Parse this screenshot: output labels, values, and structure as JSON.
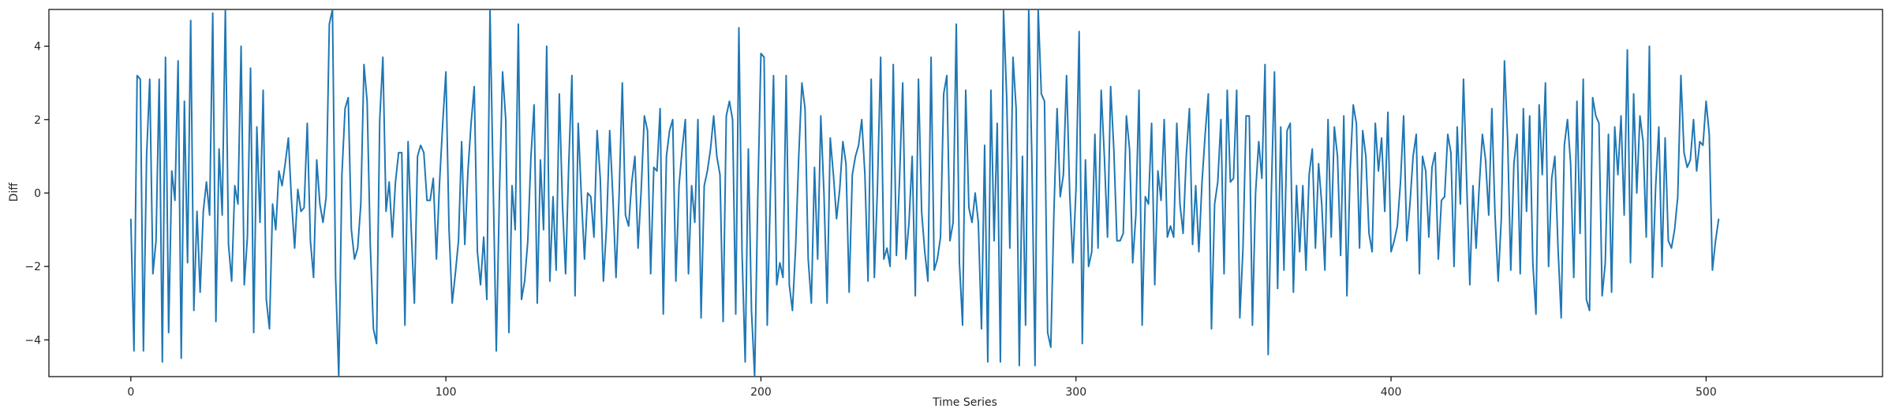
{
  "chart_data": {
    "type": "line",
    "title": "",
    "xlabel": "Time Series",
    "ylabel": "Diff",
    "xlim": [
      -26,
      556
    ],
    "ylim": [
      -5,
      5
    ],
    "xticks": [
      0,
      100,
      200,
      300,
      400,
      500
    ],
    "yticks": [
      -4,
      -2,
      0,
      2,
      4
    ],
    "xtick_labels": [
      "0",
      "100",
      "200",
      "300",
      "400",
      "500"
    ],
    "ytick_labels": [
      "−4",
      "−2",
      "0",
      "2",
      "4"
    ],
    "grid": false,
    "line_color": "#1f77b4",
    "series": [
      {
        "x_start": 0,
        "x_step": 1,
        "values": [
          -0.7,
          -4.3,
          3.2,
          3.1,
          -4.3,
          1.0,
          3.1,
          -2.2,
          -1.3,
          3.1,
          -4.6,
          3.7,
          -3.8,
          0.6,
          -0.2,
          3.6,
          -4.5,
          2.5,
          -1.9,
          4.7,
          -3.2,
          -0.5,
          -2.7,
          -0.5,
          0.3,
          -0.6,
          4.9,
          -3.5,
          1.2,
          -0.6,
          5.0,
          -1.4,
          -2.4,
          0.2,
          -0.3,
          4.0,
          -2.5,
          -1.2,
          3.4,
          -3.8,
          1.8,
          -0.8,
          2.8,
          -2.9,
          -3.7,
          -0.3,
          -1.0,
          0.6,
          0.2,
          0.8,
          1.5,
          -0.2,
          -1.5,
          0.1,
          -0.5,
          -0.4,
          1.9,
          -1.3,
          -2.3,
          0.9,
          -0.3,
          -0.8,
          -0.1,
          4.6,
          5.0,
          -2.3,
          -5.0,
          0.5,
          2.3,
          2.6,
          -1.0,
          -1.8,
          -1.5,
          -0.3,
          3.5,
          2.5,
          -1.4,
          -3.7,
          -4.1,
          2.0,
          3.7,
          -0.5,
          0.3,
          -1.2,
          0.3,
          1.1,
          1.1,
          -3.6,
          1.4,
          -1.0,
          -3.0,
          1.0,
          1.3,
          1.1,
          -0.2,
          -0.2,
          0.4,
          -1.8,
          0.3,
          1.9,
          3.3,
          -1.0,
          -3.0,
          -2.2,
          -1.3,
          1.4,
          -1.4,
          0.6,
          1.9,
          2.9,
          -1.6,
          -2.5,
          -1.2,
          -2.9,
          5.0,
          0.3,
          -4.3,
          0.0,
          3.3,
          2.0,
          -3.8,
          0.2,
          -1.0,
          4.6,
          -2.9,
          -2.4,
          -1.3,
          1.0,
          2.4,
          -3.0,
          0.9,
          -1.0,
          4.0,
          -2.4,
          -0.1,
          -2.1,
          2.7,
          -0.3,
          -2.2,
          0.8,
          3.2,
          -2.8,
          1.9,
          -0.1,
          -1.8,
          0.0,
          -0.1,
          -1.2,
          1.7,
          0.4,
          -2.4,
          -0.9,
          1.7,
          -0.1,
          -2.3,
          0.0,
          3.0,
          -0.6,
          -0.9,
          0.3,
          1.0,
          -1.5,
          0.1,
          2.1,
          1.7,
          -2.2,
          0.7,
          0.6,
          2.3,
          -3.3,
          1.0,
          1.7,
          2.0,
          -2.4,
          0.2,
          1.2,
          2.0,
          -2.2,
          0.2,
          -0.8,
          2.0,
          -3.4,
          0.2,
          0.6,
          1.2,
          2.1,
          1.0,
          0.5,
          -3.5,
          2.1,
          2.5,
          2.0,
          -3.3,
          4.5,
          -1.6,
          -4.6,
          1.2,
          -3.2,
          -5.0,
          -0.1,
          3.8,
          3.7,
          -3.6,
          0.0,
          3.2,
          -2.5,
          -1.9,
          -2.3,
          3.2,
          -2.5,
          -3.2,
          -1.5,
          1.0,
          3.0,
          2.3,
          -1.8,
          -3.0,
          0.7,
          -1.8,
          2.1,
          0.0,
          -3.0,
          1.5,
          0.5,
          -0.7,
          0.1,
          1.4,
          0.8,
          -2.7,
          0.5,
          1.0,
          1.3,
          2.0,
          0.5,
          -2.4,
          3.1,
          -2.3,
          0.2,
          3.7,
          -1.8,
          -1.5,
          -2.0,
          3.5,
          -1.7,
          0.4,
          3.0,
          -1.8,
          -0.8,
          1.0,
          -2.8,
          3.1,
          -0.5,
          -1.6,
          -2.4,
          3.7,
          -2.1,
          -1.8,
          -1.2,
          2.7,
          3.2,
          -1.3,
          -0.8,
          4.6,
          -1.9,
          -3.6,
          2.8,
          -0.4,
          -0.8,
          0.0,
          -0.8,
          -3.7,
          1.3,
          -4.6,
          2.8,
          -1.3,
          1.9,
          -4.6,
          5.0,
          2.6,
          -1.5,
          3.7,
          2.3,
          -4.7,
          1.0,
          -3.6,
          5.0,
          0.9,
          -4.7,
          5.0,
          2.7,
          2.5,
          -3.8,
          -4.2,
          -0.5,
          2.3,
          -0.1,
          0.5,
          3.2,
          0.0,
          -1.9,
          0.1,
          4.4,
          -4.1,
          0.9,
          -2.0,
          -1.6,
          1.6,
          -1.5,
          2.8,
          1.0,
          -1.2,
          2.9,
          1.2,
          -1.3,
          -1.3,
          -1.1,
          2.1,
          1.2,
          -1.9,
          -0.6,
          2.8,
          -3.6,
          -0.1,
          -0.3,
          1.9,
          -2.5,
          0.6,
          -0.2,
          2.0,
          -1.2,
          -0.9,
          -1.2,
          1.9,
          -0.3,
          -1.1,
          1.0,
          2.3,
          -1.4,
          0.2,
          -1.6,
          0.3,
          1.6,
          2.7,
          -3.7,
          -0.3,
          0.3,
          2.0,
          -2.2,
          2.8,
          0.3,
          0.4,
          2.8,
          -3.4,
          -1.5,
          2.1,
          2.1,
          -3.6,
          0.0,
          1.4,
          0.4,
          3.5,
          -4.4,
          0.0,
          3.3,
          -2.6,
          1.8,
          -2.1,
          1.7,
          1.9,
          -2.7,
          0.2,
          -1.6,
          0.2,
          -2.1,
          0.5,
          1.2,
          -1.5,
          0.8,
          -0.3,
          -2.1,
          2.0,
          -1.2,
          1.8,
          1.0,
          -1.7,
          2.1,
          -2.8,
          0.6,
          2.4,
          1.9,
          -1.5,
          1.7,
          1.0,
          -1.1,
          -1.6,
          1.9,
          0.6,
          1.5,
          -0.5,
          2.2,
          -1.6,
          -1.3,
          -0.9,
          0.3,
          2.1,
          -1.3,
          -0.3,
          1.0,
          1.6,
          -2.2,
          1.0,
          0.6,
          -1.2,
          0.7,
          1.1,
          -1.8,
          -0.2,
          -0.1,
          1.6,
          1.1,
          -2.0,
          1.8,
          -0.3,
          3.1,
          0.3,
          -2.5,
          0.2,
          -1.5,
          0.2,
          1.6,
          0.9,
          -0.6,
          2.3,
          -0.6,
          -2.4,
          -0.7,
          3.6,
          1.5,
          -2.1,
          0.8,
          1.6,
          -2.2,
          2.3,
          -0.5,
          2.1,
          -1.9,
          -3.3,
          2.4,
          0.5,
          3.0,
          -2.0,
          0.4,
          1.0,
          -1.5,
          -3.4,
          1.3,
          2.0,
          0.8,
          -2.3,
          2.5,
          -1.1,
          3.1,
          -2.9,
          -3.2,
          2.6,
          2.1,
          1.9,
          -2.8,
          -1.9,
          1.6,
          -2.7,
          1.8,
          0.5,
          2.1,
          -0.6,
          3.9,
          -1.9,
          2.7,
          0.0,
          2.1,
          1.4,
          -1.2,
          4.0,
          -2.3,
          0.2,
          1.8,
          -2.0,
          1.5,
          -1.3,
          -1.5,
          -1.0,
          -0.1,
          3.2,
          1.1,
          0.7,
          0.9,
          2.0,
          0.6,
          1.4,
          1.3,
          2.5,
          1.6,
          -2.1,
          -1.3,
          -0.7
        ]
      }
    ]
  }
}
